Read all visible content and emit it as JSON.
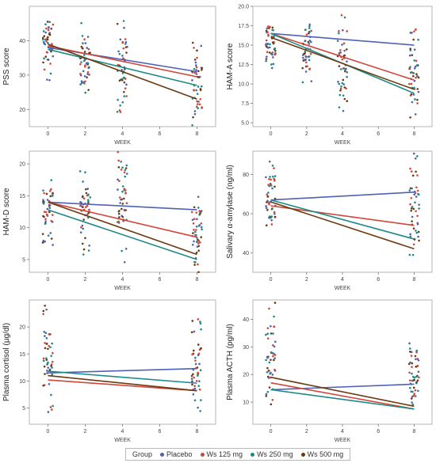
{
  "legend": {
    "title": "Group",
    "items": [
      {
        "label": "Placebo",
        "color": "#4e61b5"
      },
      {
        "label": "Ws 125 mg",
        "color": "#d0463a"
      },
      {
        "label": "Ws 250 mg",
        "color": "#1b8a86"
      },
      {
        "label": "Ws 500 mg",
        "color": "#6b3a10"
      }
    ]
  },
  "chart_data": [
    {
      "type": "scatter",
      "ylabel": "PSS score",
      "xlabel": "WEEK",
      "xlim": [
        -1,
        9
      ],
      "ylim": [
        15,
        50
      ],
      "xticks": [
        0,
        2,
        4,
        6,
        8
      ],
      "yticks": [
        20,
        30,
        40
      ],
      "scatter_x": [
        0,
        2,
        4,
        8
      ],
      "scatter_ranges": [
        [
          28,
          49
        ],
        [
          23,
          46
        ],
        [
          19,
          47
        ],
        [
          15,
          41
        ]
      ],
      "series": [
        {
          "name": "Placebo",
          "x": [
            0,
            8
          ],
          "y": [
            38,
            31
          ]
        },
        {
          "name": "Ws 125 mg",
          "x": [
            0,
            8
          ],
          "y": [
            38.5,
            29.5
          ]
        },
        {
          "name": "Ws 250 mg",
          "x": [
            0,
            8
          ],
          "y": [
            37.5,
            27
          ]
        },
        {
          "name": "Ws 500 mg",
          "x": [
            0,
            8
          ],
          "y": [
            39,
            23
          ]
        }
      ]
    },
    {
      "type": "scatter",
      "ylabel": "HAM-A score",
      "xlabel": "WEEK",
      "xlim": [
        -1,
        9
      ],
      "ylim": [
        4.5,
        20
      ],
      "xticks": [
        0,
        2,
        4,
        6,
        8
      ],
      "yticks": [
        5.0,
        7.5,
        10.0,
        12.5,
        15.0,
        17.5,
        20.0
      ],
      "ytick_labels": [
        "5.0",
        "7.5",
        "10.0",
        "12.5",
        "15.0",
        "17.5",
        "20.0"
      ],
      "scatter_x": [
        0,
        2,
        4,
        8
      ],
      "scatter_ranges": [
        [
          12,
          18.5
        ],
        [
          9.5,
          19.5
        ],
        [
          6,
          19
        ],
        [
          5,
          18.5
        ]
      ],
      "series": [
        {
          "name": "Placebo",
          "x": [
            0,
            8
          ],
          "y": [
            16.5,
            15
          ]
        },
        {
          "name": "Ws 125 mg",
          "x": [
            0,
            8
          ],
          "y": [
            16.5,
            10.5
          ]
        },
        {
          "name": "Ws 250 mg",
          "x": [
            0,
            8
          ],
          "y": [
            16.5,
            8.8
          ]
        },
        {
          "name": "Ws 500 mg",
          "x": [
            0,
            8
          ],
          "y": [
            16,
            9.3
          ]
        }
      ]
    },
    {
      "type": "scatter",
      "ylabel": "HAM-D score",
      "xlabel": "WEEK",
      "xlim": [
        -1,
        9
      ],
      "ylim": [
        3,
        22
      ],
      "xticks": [
        0,
        2,
        4,
        6,
        8
      ],
      "yticks": [
        5,
        10,
        15,
        20
      ],
      "scatter_x": [
        0,
        2,
        4,
        8
      ],
      "scatter_ranges": [
        [
          7,
          18
        ],
        [
          5,
          19
        ],
        [
          4,
          22
        ],
        [
          3,
          16
        ]
      ],
      "series": [
        {
          "name": "Placebo",
          "x": [
            0,
            8
          ],
          "y": [
            14,
            12.8
          ]
        },
        {
          "name": "Ws 125 mg",
          "x": [
            0,
            8
          ],
          "y": [
            14,
            8.5
          ]
        },
        {
          "name": "Ws 250 mg",
          "x": [
            0,
            8
          ],
          "y": [
            12.8,
            5
          ]
        },
        {
          "name": "Ws 500 mg",
          "x": [
            0,
            8
          ],
          "y": [
            14,
            5.8
          ]
        }
      ]
    },
    {
      "type": "scatter",
      "ylabel": "Salivary α-amylase (ng/ml)",
      "xlabel": "WEEK",
      "xlim": [
        -1,
        9
      ],
      "ylim": [
        30,
        92
      ],
      "xticks": [
        0,
        2,
        4,
        6,
        8
      ],
      "yticks": [
        40,
        60,
        80
      ],
      "scatter_x": [
        0,
        8
      ],
      "scatter_ranges": [
        [
          46,
          89
        ],
        [
          31,
          91
        ]
      ],
      "series": [
        {
          "name": "Placebo",
          "x": [
            0,
            8
          ],
          "y": [
            67,
            71
          ]
        },
        {
          "name": "Ws 125 mg",
          "x": [
            0,
            8
          ],
          "y": [
            64,
            54
          ]
        },
        {
          "name": "Ws 250 mg",
          "x": [
            0,
            8
          ],
          "y": [
            67,
            47
          ]
        },
        {
          "name": "Ws 500 mg",
          "x": [
            0,
            8
          ],
          "y": [
            66,
            42
          ]
        }
      ]
    },
    {
      "type": "scatter",
      "ylabel": "Plasma cortisol (µg/dl)",
      "xlabel": "WEEK",
      "xlim": [
        -1,
        9
      ],
      "ylim": [
        2,
        25
      ],
      "xticks": [
        0,
        2,
        4,
        6,
        8
      ],
      "yticks": [
        5,
        10,
        15,
        20
      ],
      "scatter_x": [
        0,
        8
      ],
      "scatter_ranges": [
        [
          3.5,
          24
        ],
        [
          2.5,
          22.5
        ]
      ],
      "series": [
        {
          "name": "Placebo",
          "x": [
            0,
            8
          ],
          "y": [
            11.5,
            12.3
          ]
        },
        {
          "name": "Ws 125 mg",
          "x": [
            0,
            8
          ],
          "y": [
            10.2,
            8.2
          ]
        },
        {
          "name": "Ws 250 mg",
          "x": [
            0,
            8
          ],
          "y": [
            11.8,
            9.6
          ]
        },
        {
          "name": "Ws 500 mg",
          "x": [
            0,
            8
          ],
          "y": [
            11,
            8.2
          ]
        }
      ]
    },
    {
      "type": "scatter",
      "ylabel": "Plasma ACTH (pg/ml)",
      "xlabel": "WEEK",
      "xlim": [
        -1,
        9
      ],
      "ylim": [
        2,
        47
      ],
      "xticks": [
        0,
        2,
        4,
        6,
        8
      ],
      "yticks": [
        10,
        20,
        30,
        40
      ],
      "scatter_x": [
        0,
        8
      ],
      "scatter_ranges": [
        [
          4,
          46
        ],
        [
          3,
          36
        ]
      ],
      "series": [
        {
          "name": "Placebo",
          "x": [
            0,
            8
          ],
          "y": [
            14.5,
            16.5
          ]
        },
        {
          "name": "Ws 125 mg",
          "x": [
            0,
            8
          ],
          "y": [
            17,
            7.5
          ]
        },
        {
          "name": "Ws 250 mg",
          "x": [
            0,
            8
          ],
          "y": [
            14.5,
            7.5
          ]
        },
        {
          "name": "Ws 500 mg",
          "x": [
            0,
            8
          ],
          "y": [
            19,
            8.5
          ]
        }
      ]
    }
  ]
}
